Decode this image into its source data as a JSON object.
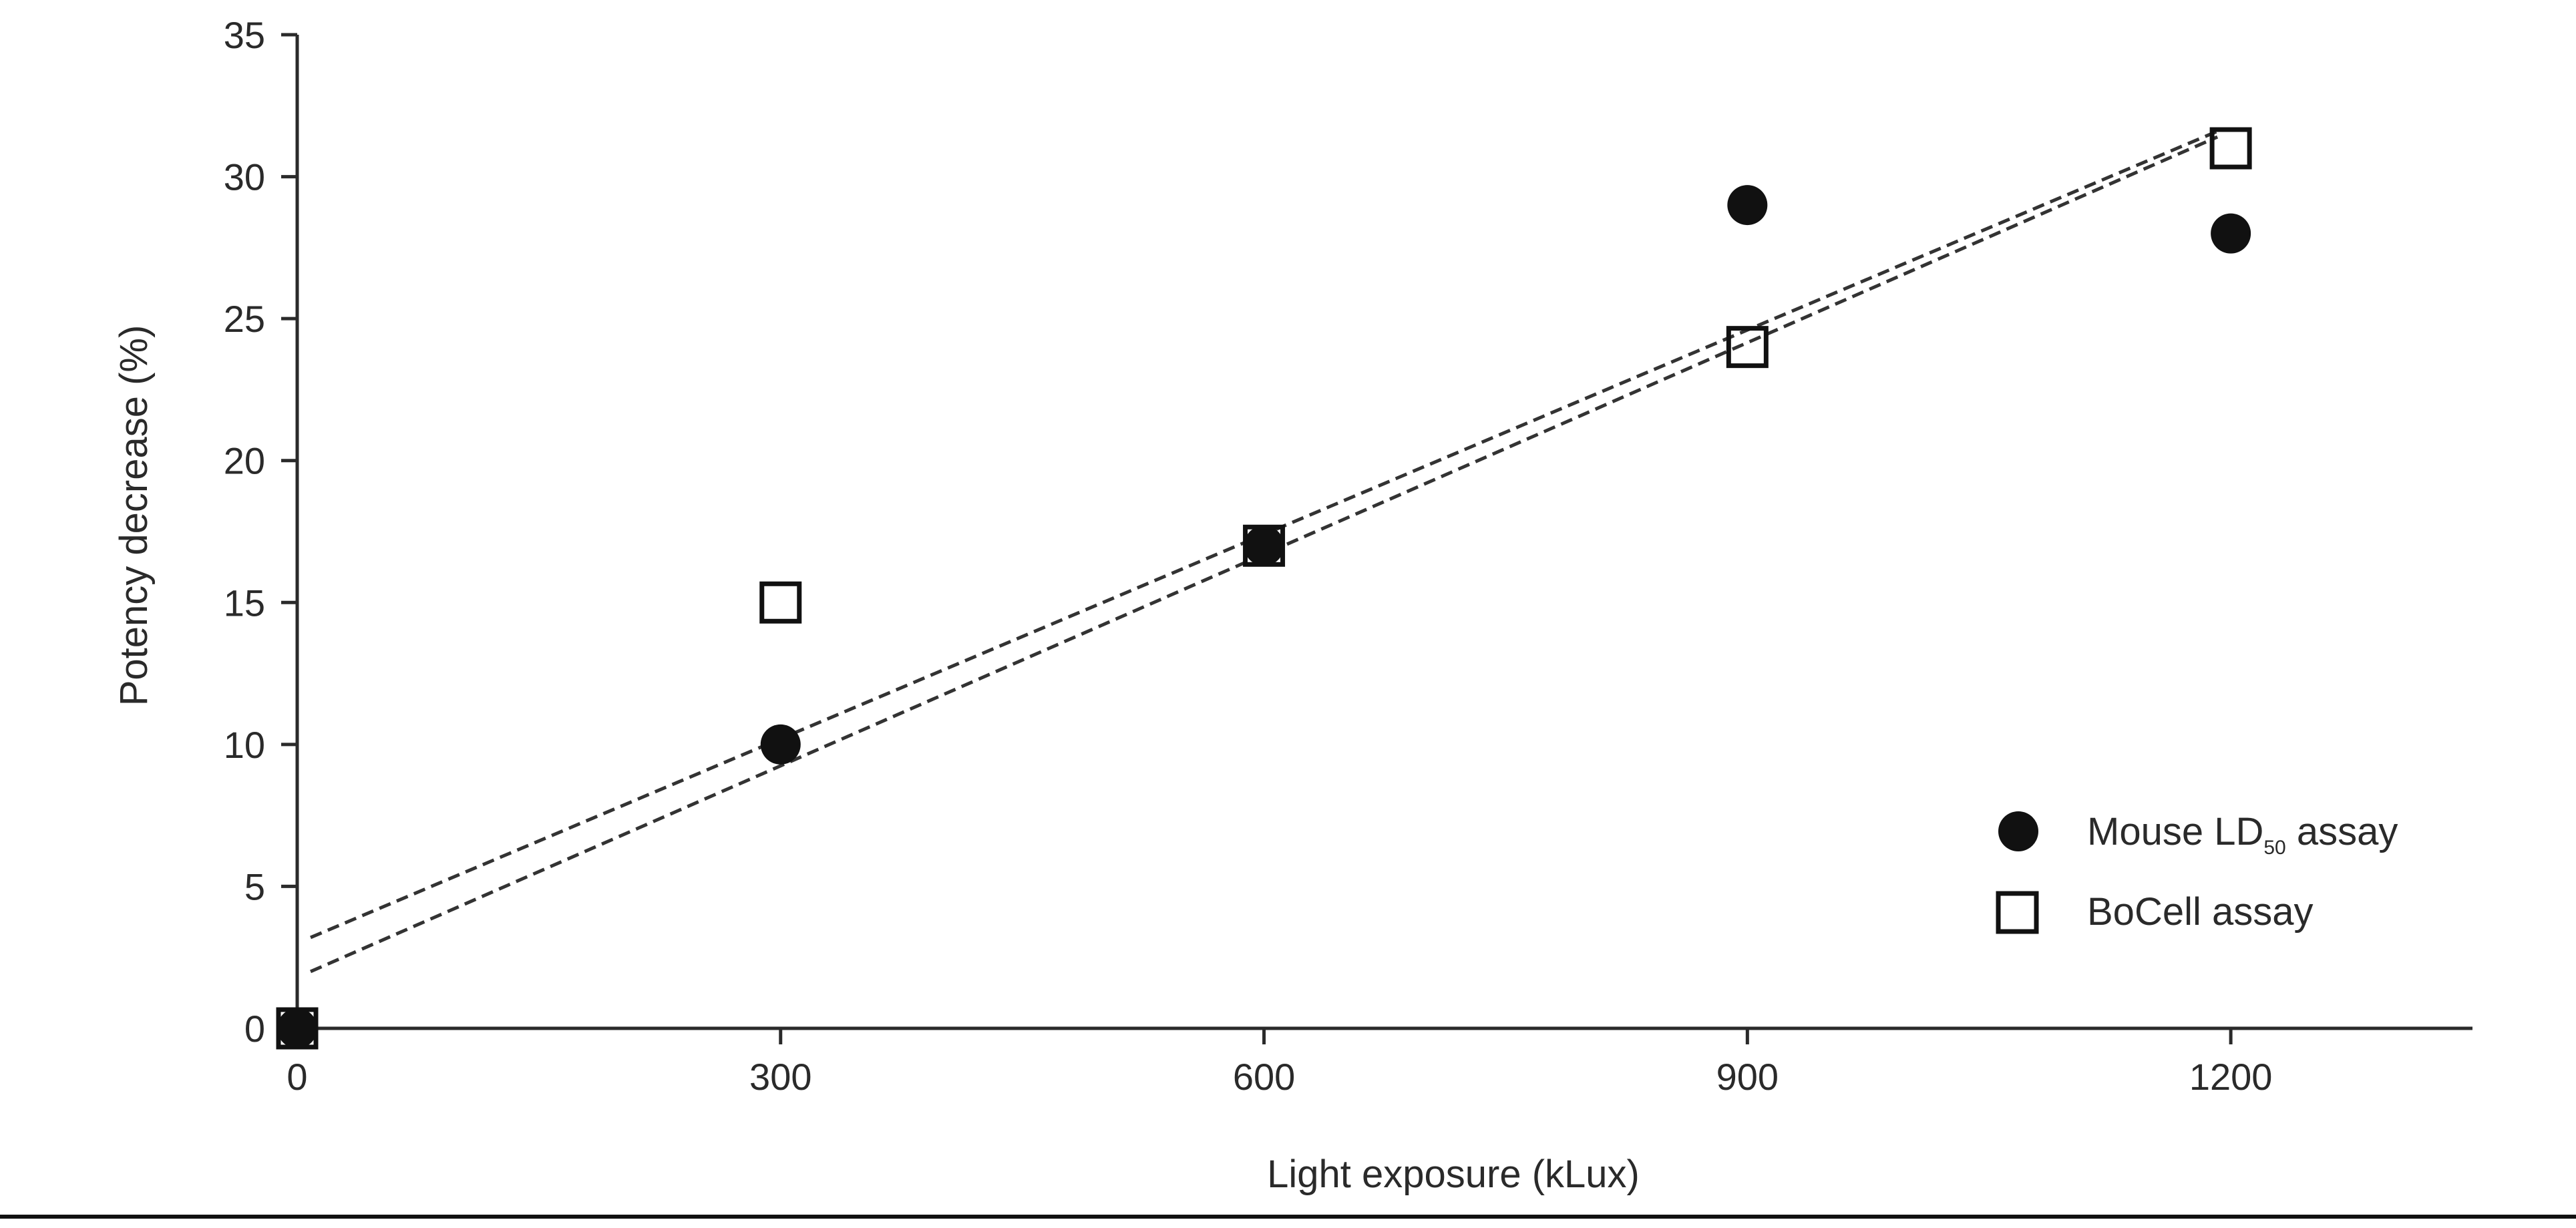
{
  "chart_data": {
    "type": "scatter",
    "title": "",
    "xlabel": "Light exposure (kLux)",
    "ylabel": "Potency decrease (%)",
    "xlim": [
      0,
      1350
    ],
    "ylim": [
      0,
      35
    ],
    "xticks": [
      0,
      300,
      600,
      900,
      1200
    ],
    "yticks": [
      0,
      5,
      10,
      15,
      20,
      25,
      30,
      35
    ],
    "grid": false,
    "legend_placement": "bottom-right",
    "series": [
      {
        "name": "Mouse LD50 assay",
        "marker": "filled-circle",
        "color": "#111111",
        "points": [
          {
            "x": 0,
            "y": 0
          },
          {
            "x": 300,
            "y": 10
          },
          {
            "x": 600,
            "y": 17
          },
          {
            "x": 900,
            "y": 29
          },
          {
            "x": 1200,
            "y": 28
          }
        ],
        "trendline": {
          "style": "dashed",
          "from": [
            0,
            3.2
          ],
          "to": [
            1200,
            31.6
          ]
        }
      },
      {
        "name": "BoCell assay",
        "marker": "open-square",
        "color": "#111111",
        "points": [
          {
            "x": 0,
            "y": 0
          },
          {
            "x": 300,
            "y": 15
          },
          {
            "x": 600,
            "y": 17
          },
          {
            "x": 900,
            "y": 24
          },
          {
            "x": 1200,
            "y": 31
          }
        ],
        "trendline": {
          "style": "dashed",
          "from": [
            0,
            2.0
          ],
          "to": [
            1200,
            31.4
          ]
        }
      }
    ],
    "legend": {
      "mouse_label_main": "Mouse LD",
      "mouse_label_sub": "50",
      "mouse_label_tail": " assay",
      "bocell_label": "BoCell assay"
    }
  }
}
